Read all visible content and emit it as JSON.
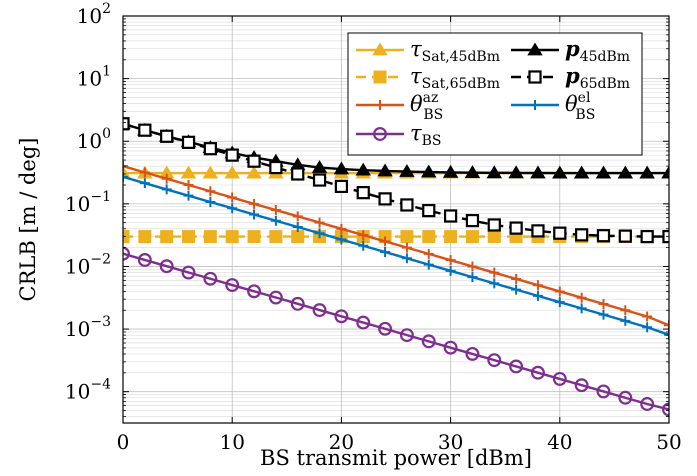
{
  "chart_data": {
    "type": "line",
    "title": "",
    "xlabel": "BS transmit power [dBm]",
    "ylabel": "CRLB [m / deg]",
    "xlim": [
      0,
      50
    ],
    "ylim_log10": [
      -4.5,
      2
    ],
    "yscale": "log",
    "grid": true,
    "legend_placement": "top-right",
    "xticks": [
      0,
      10,
      20,
      30,
      40,
      50
    ],
    "yticks": [
      {
        "exp": -4,
        "label_base": "10",
        "label_exp": "−4"
      },
      {
        "exp": -3,
        "label_base": "10",
        "label_exp": "−3"
      },
      {
        "exp": -2,
        "label_base": "10",
        "label_exp": "−2"
      },
      {
        "exp": -1,
        "label_base": "10",
        "label_exp": "−1"
      },
      {
        "exp": 0,
        "label_base": "10",
        "label_exp": "0"
      },
      {
        "exp": 1,
        "label_base": "10",
        "label_exp": "1"
      },
      {
        "exp": 2,
        "label_base": "10",
        "label_exp": "2"
      }
    ],
    "x": [
      0,
      2,
      4,
      6,
      8,
      10,
      12,
      14,
      16,
      18,
      20,
      22,
      24,
      26,
      28,
      30,
      32,
      34,
      36,
      38,
      40,
      42,
      44,
      46,
      48,
      50
    ],
    "series": [
      {
        "id": "tau_sat_45",
        "legend_main": "τ",
        "legend_sub": "Sat,45dBm",
        "color": "#EDB120",
        "marker": "triangle",
        "dash": "none",
        "values": [
          0.31,
          0.31,
          0.31,
          0.31,
          0.31,
          0.31,
          0.31,
          0.31,
          0.31,
          0.31,
          0.31,
          0.31,
          0.31,
          0.31,
          0.31,
          0.31,
          0.31,
          0.31,
          0.31,
          0.31,
          0.31,
          0.31,
          0.31,
          0.31,
          0.31,
          0.31
        ]
      },
      {
        "id": "tau_sat_65",
        "legend_main": "τ",
        "legend_sub": "Sat,65dBm",
        "color": "#EDB120",
        "marker": "square",
        "dash": "dashed",
        "values": [
          0.03,
          0.03,
          0.03,
          0.03,
          0.03,
          0.03,
          0.03,
          0.03,
          0.03,
          0.03,
          0.03,
          0.03,
          0.03,
          0.03,
          0.03,
          0.03,
          0.03,
          0.03,
          0.03,
          0.03,
          0.03,
          0.03,
          0.03,
          0.03,
          0.03,
          0.03
        ]
      },
      {
        "id": "theta_az",
        "legend_main": "θ",
        "legend_sub": "BS",
        "legend_sup": "az",
        "color": "#D95319",
        "marker": "plus",
        "dash": "none",
        "values": [
          0.4,
          0.317,
          0.252,
          0.2,
          0.159,
          0.126,
          0.1,
          0.0796,
          0.0632,
          0.0502,
          0.0399,
          0.0317,
          0.0252,
          0.02,
          0.0159,
          0.0126,
          0.01,
          0.00796,
          0.00632,
          0.00502,
          0.00399,
          0.00317,
          0.00252,
          0.002,
          0.00159,
          0.00115
        ]
      },
      {
        "id": "theta_el",
        "legend_main": "θ",
        "legend_sub": "BS",
        "legend_sup": "el",
        "color": "#0072BD",
        "marker": "plus",
        "dash": "none",
        "values": [
          0.27,
          0.214,
          0.17,
          0.135,
          0.107,
          0.0852,
          0.0676,
          0.0537,
          0.0427,
          0.0339,
          0.0269,
          0.0214,
          0.017,
          0.0135,
          0.0107,
          0.00852,
          0.00676,
          0.00537,
          0.00427,
          0.00339,
          0.00269,
          0.00214,
          0.0017,
          0.00135,
          0.00107,
          0.00081
        ]
      },
      {
        "id": "tau_bs",
        "legend_main": "τ",
        "legend_sub": "BS",
        "color": "#7E2F8E",
        "marker": "circle",
        "dash": "none",
        "values": [
          0.016,
          0.0127,
          0.0101,
          0.008,
          0.00636,
          0.00505,
          0.00401,
          0.00319,
          0.00253,
          0.00201,
          0.0016,
          0.00127,
          0.00101,
          0.0008,
          0.000636,
          0.000505,
          0.000401,
          0.000319,
          0.000253,
          0.000201,
          0.00016,
          0.000127,
          0.000101,
          8e-05,
          6.36e-05,
          5.2e-05
        ]
      },
      {
        "id": "p_45",
        "legend_main": "p",
        "legend_sub": "45dBm",
        "color": "#000000",
        "marker": "triangle",
        "dash": "none",
        "values": [
          1.9,
          1.5,
          1.2,
          0.98,
          0.79,
          0.65,
          0.55,
          0.48,
          0.42,
          0.38,
          0.36,
          0.345,
          0.335,
          0.328,
          0.322,
          0.318,
          0.315,
          0.313,
          0.312,
          0.311,
          0.31,
          0.31,
          0.31,
          0.31,
          0.31,
          0.31
        ]
      },
      {
        "id": "p_65",
        "legend_main": "p",
        "legend_sub": "65dBm",
        "color": "#000000",
        "marker": "open-square",
        "dash": "dashed",
        "values": [
          1.9,
          1.5,
          1.2,
          0.96,
          0.76,
          0.6,
          0.48,
          0.38,
          0.3,
          0.24,
          0.19,
          0.151,
          0.12,
          0.096,
          0.078,
          0.064,
          0.054,
          0.046,
          0.041,
          0.037,
          0.034,
          0.032,
          0.031,
          0.0305,
          0.03,
          0.03
        ]
      }
    ]
  }
}
